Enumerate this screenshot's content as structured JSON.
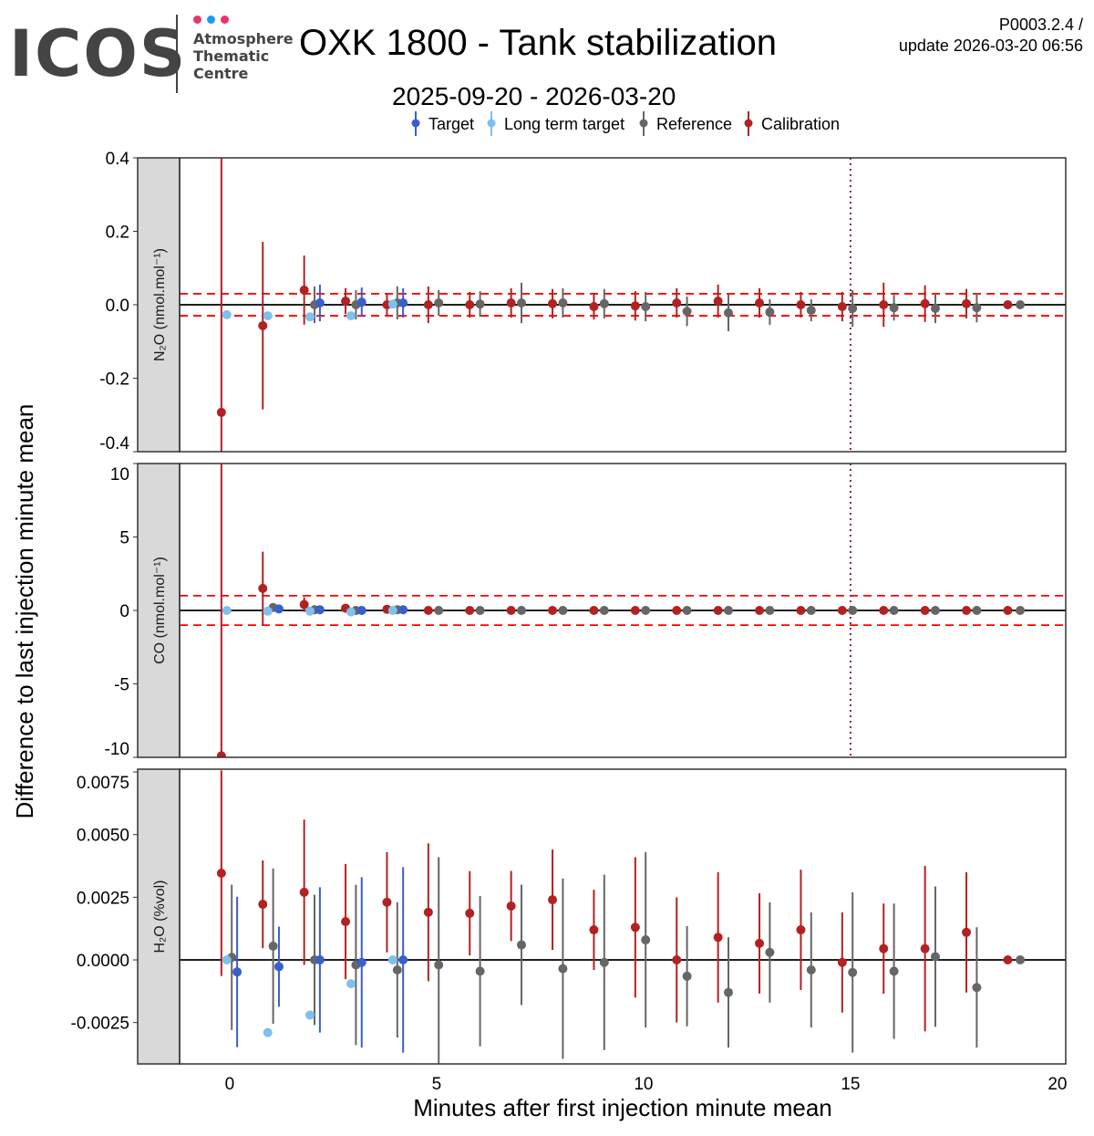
{
  "header": {
    "logo": {
      "name": "ICOS",
      "subtitle": "Atmosphere\nThematic\nCentre",
      "dot_colors": [
        "#e8336d",
        "#1a9bf0",
        "#e8336d"
      ]
    },
    "title": "OXK 1800 - Tank stabilization",
    "subtitle": "2025-09-20 - 2026-03-20",
    "version": "P0003.2.4 /",
    "update": "update  2026-03-20 06:56"
  },
  "chart_data": {
    "type": "scatter",
    "xlabel": "Minutes after first injection minute mean",
    "ylabel": "Difference to last injection minute mean",
    "xlim": [
      -1.21,
      20.2
    ],
    "xticks": [
      0,
      5,
      10,
      15,
      20
    ],
    "grid": false,
    "legend_position": "top",
    "vline": {
      "x": 15,
      "color": "#8b2252",
      "style": "dotted",
      "panels": [
        0,
        1
      ]
    },
    "series_meta": [
      {
        "key": "target",
        "name": "Target",
        "color": "#3a5fcd"
      },
      {
        "key": "ltt",
        "name": "Long term target",
        "color": "#7ec0ee"
      },
      {
        "key": "reference",
        "name": "Reference",
        "color": "#666666"
      },
      {
        "key": "calibration",
        "name": "Calibration",
        "color": "#b22222"
      }
    ],
    "panels": [
      {
        "strip": "N₂O (nmol.mol⁻¹)",
        "ylim": [
          -0.4,
          0.4
        ],
        "yticks": [
          "0.4",
          "0.2",
          "0.0",
          "-0.2",
          "-0.4"
        ],
        "ytick_values": [
          0.4,
          0.2,
          0,
          -0.2,
          -0.4
        ],
        "dashed_limits": [
          0.03,
          -0.03
        ],
        "series": {
          "calibration": [
            [
              -0.2,
              -0.293,
              0.75
            ],
            [
              0.8,
              -0.057,
              0.228
            ],
            [
              1.8,
              0.04,
              0.094
            ],
            [
              2.8,
              0.01,
              0.035
            ],
            [
              3.8,
              0.0,
              0.03
            ],
            [
              4.8,
              0.0,
              0.05
            ],
            [
              5.8,
              0.0,
              0.035
            ],
            [
              6.8,
              0.005,
              0.04
            ],
            [
              7.8,
              0.003,
              0.04
            ],
            [
              8.8,
              -0.005,
              0.035
            ],
            [
              9.8,
              -0.003,
              0.04
            ],
            [
              10.8,
              0.005,
              0.04
            ],
            [
              11.8,
              0.01,
              0.045
            ],
            [
              12.8,
              0.005,
              0.04
            ],
            [
              13.8,
              0.0,
              0.035
            ],
            [
              14.8,
              -0.005,
              0.04
            ],
            [
              15.8,
              0.0,
              0.06
            ],
            [
              16.8,
              0.003,
              0.05
            ],
            [
              17.8,
              0.003,
              0.04
            ],
            [
              18.8,
              0.0,
              0
            ]
          ],
          "reference": [
            [
              2.05,
              0.0,
              0.05
            ],
            [
              3.05,
              0.0,
              0.04
            ],
            [
              4.05,
              0.005,
              0.045
            ],
            [
              5.05,
              0.005,
              0.035
            ],
            [
              6.05,
              0.002,
              0.035
            ],
            [
              7.05,
              0.005,
              0.055
            ],
            [
              8.05,
              0.005,
              0.04
            ],
            [
              9.05,
              0.003,
              0.04
            ],
            [
              10.05,
              -0.005,
              0.04
            ],
            [
              11.05,
              -0.018,
              0.04
            ],
            [
              12.05,
              -0.022,
              0.05
            ],
            [
              13.05,
              -0.02,
              0.035
            ],
            [
              14.05,
              -0.015,
              0.03
            ],
            [
              15.05,
              -0.01,
              0.05
            ],
            [
              16.05,
              -0.008,
              0.035
            ],
            [
              17.05,
              -0.01,
              0.04
            ],
            [
              18.05,
              -0.008,
              0.04
            ],
            [
              19.1,
              0.0,
              0
            ]
          ],
          "target": [
            [
              2.18,
              0.005,
              0.05
            ],
            [
              3.19,
              0.007,
              0.04
            ],
            [
              4.19,
              0.005,
              0.04
            ]
          ],
          "ltt": [
            [
              -0.07,
              -0.027,
              0
            ],
            [
              0.92,
              -0.03,
              0
            ],
            [
              1.94,
              -0.033,
              0
            ],
            [
              2.93,
              -0.03,
              0
            ],
            [
              3.94,
              0.002,
              0
            ]
          ]
        }
      },
      {
        "strip": "CO (nmol.mol⁻¹)",
        "ylim": [
          -10,
          10
        ],
        "yticks": [
          "10",
          "5",
          "0",
          "-5",
          "-10"
        ],
        "ytick_values": [
          10,
          5,
          0,
          -5,
          -10
        ],
        "dashed_limits": [
          1,
          -1
        ],
        "series": {
          "calibration": [
            [
              -0.2,
              -9.9,
              20
            ],
            [
              0.8,
              1.5,
              2.5
            ],
            [
              1.8,
              0.4,
              0.5
            ],
            [
              2.8,
              0.15,
              0.2
            ],
            [
              3.8,
              0.08,
              0.15
            ],
            [
              4.8,
              0,
              0.1
            ],
            [
              5.8,
              0,
              0.1
            ],
            [
              6.8,
              0,
              0.1
            ],
            [
              7.8,
              0,
              0.1
            ],
            [
              8.8,
              0,
              0.1
            ],
            [
              9.8,
              0,
              0.1
            ],
            [
              10.8,
              0,
              0.1
            ],
            [
              11.8,
              0,
              0.1
            ],
            [
              12.8,
              0,
              0.1
            ],
            [
              13.8,
              0,
              0.1
            ],
            [
              14.8,
              0,
              0.1
            ],
            [
              15.8,
              0,
              0.1
            ],
            [
              16.8,
              0,
              0.1
            ],
            [
              17.8,
              0,
              0.1
            ],
            [
              18.8,
              0,
              0
            ]
          ],
          "reference": [
            [
              1.05,
              0.2,
              0.2
            ],
            [
              2.05,
              0.05,
              0.1
            ],
            [
              3.05,
              0.0,
              0.1
            ],
            [
              4.05,
              0.05,
              0.1
            ],
            [
              5.05,
              0,
              0.1
            ],
            [
              6.05,
              0,
              0.1
            ],
            [
              7.05,
              0,
              0.1
            ],
            [
              8.05,
              0,
              0.1
            ],
            [
              9.05,
              0,
              0.1
            ],
            [
              10.05,
              0,
              0.1
            ],
            [
              11.05,
              0,
              0.1
            ],
            [
              12.05,
              0,
              0.1
            ],
            [
              13.05,
              0,
              0.1
            ],
            [
              14.05,
              0,
              0.1
            ],
            [
              15.05,
              0,
              0.1
            ],
            [
              16.05,
              0,
              0.1
            ],
            [
              17.05,
              0,
              0.1
            ],
            [
              18.05,
              0,
              0.1
            ],
            [
              19.1,
              0,
              0
            ]
          ],
          "target": [
            [
              1.19,
              0.1,
              0.15
            ],
            [
              2.18,
              0.05,
              0.15
            ],
            [
              3.19,
              0,
              0.1
            ],
            [
              4.19,
              0.05,
              0.1
            ]
          ],
          "ltt": [
            [
              -0.07,
              0,
              0
            ],
            [
              0.92,
              -0.05,
              0
            ],
            [
              1.94,
              -0.05,
              0
            ],
            [
              2.93,
              -0.1,
              0
            ],
            [
              3.94,
              0,
              0
            ]
          ]
        }
      },
      {
        "strip": "H₂O (%vol)",
        "ylim": [
          -0.00415,
          0.00761
        ],
        "yticks": [
          "0.0075",
          "0.0050",
          "0.0025",
          "0.0000",
          "-0.0025"
        ],
        "ytick_values": [
          0.0075,
          0.005,
          0.0025,
          0,
          -0.0025
        ],
        "dashed_limits": [],
        "series": {
          "calibration": [
            [
              -0.2,
              0.00346,
              0.0041
            ],
            [
              0.8,
              0.00222,
              0.00175
            ],
            [
              1.8,
              0.0027,
              0.0029
            ],
            [
              2.8,
              0.00153,
              0.0023
            ],
            [
              3.8,
              0.0023,
              0.002
            ],
            [
              4.8,
              0.0019,
              0.00275
            ],
            [
              5.8,
              0.00186,
              0.00168
            ],
            [
              6.8,
              0.00215,
              0.0014
            ],
            [
              7.8,
              0.0024,
              0.002
            ],
            [
              8.8,
              0.0012,
              0.0016
            ],
            [
              9.8,
              0.0013,
              0.0028
            ],
            [
              10.8,
              0.0,
              0.0025
            ],
            [
              11.8,
              0.0009,
              0.0026
            ],
            [
              12.8,
              0.00066,
              0.002
            ],
            [
              13.8,
              0.0012,
              0.0024
            ],
            [
              14.8,
              -0.0001,
              0.002
            ],
            [
              15.8,
              0.00045,
              0.0018
            ],
            [
              16.8,
              0.00045,
              0.0033
            ],
            [
              17.8,
              0.0011,
              0.0024
            ],
            [
              18.8,
              0,
              0
            ]
          ],
          "reference": [
            [
              0.05,
              0.0001,
              0.0029
            ],
            [
              1.05,
              0.00055,
              0.0031
            ],
            [
              2.05,
              0,
              0.0026
            ],
            [
              3.05,
              -0.0002,
              0.0032
            ],
            [
              4.05,
              -0.0004,
              0.0027
            ],
            [
              5.05,
              -0.0002,
              0.0043
            ],
            [
              6.05,
              -0.00045,
              0.003
            ],
            [
              7.05,
              0.0006,
              0.0024
            ],
            [
              8.05,
              -0.00035,
              0.0036
            ],
            [
              9.05,
              -0.0001,
              0.0035
            ],
            [
              10.05,
              0.0008,
              0.0035
            ],
            [
              11.05,
              -0.00065,
              0.002
            ],
            [
              12.05,
              -0.0013,
              0.0022
            ],
            [
              13.05,
              0.0003,
              0.002
            ],
            [
              14.05,
              -0.0004,
              0.0023
            ],
            [
              15.05,
              -0.0005,
              0.0032
            ],
            [
              16.05,
              -0.00045,
              0.0027
            ],
            [
              17.05,
              0.00013,
              0.0028
            ],
            [
              18.05,
              -0.0011,
              0.0024
            ],
            [
              19.1,
              0,
              0
            ]
          ],
          "target": [
            [
              0.18,
              -0.00048,
              0.003
            ],
            [
              1.19,
              -0.00027,
              0.0016
            ],
            [
              2.18,
              0,
              0.0029
            ],
            [
              3.19,
              -0.0001,
              0.0034
            ],
            [
              4.19,
              0,
              0.0037
            ]
          ],
          "ltt": [
            [
              -0.07,
              0,
              0
            ],
            [
              0.92,
              -0.0029,
              0
            ],
            [
              1.94,
              -0.0022,
              0
            ],
            [
              2.93,
              -0.00095,
              0
            ],
            [
              3.94,
              0,
              0
            ]
          ]
        }
      }
    ]
  }
}
